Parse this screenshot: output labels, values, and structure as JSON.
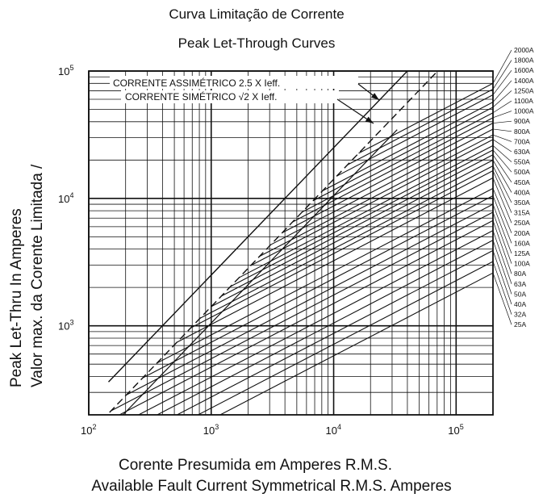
{
  "chart_data": {
    "type": "line",
    "title": "Curva Limitação de Corrente",
    "subtitle": "Peak Let-Through Curves",
    "xlabel_pt": "Corente Presumida em Amperes  R.M.S.",
    "xlabel_en": "Available Fault Current Symmetrical R.M.S. Amperes",
    "ylabel_en": "Peak Let-Thru In Amperes",
    "ylabel_pt": "Valor max. da Corente Limitada /",
    "x_scale": "log",
    "y_scale": "log",
    "xlim": [
      100,
      200000
    ],
    "ylim": [
      200,
      100000
    ],
    "x_ticks": [
      {
        "base": "10",
        "exp": "2",
        "value": 100
      },
      {
        "base": "10",
        "exp": "3",
        "value": 1000
      },
      {
        "base": "10",
        "exp": "4",
        "value": 10000
      },
      {
        "base": "10",
        "exp": "5",
        "value": 100000
      }
    ],
    "y_ticks": [
      {
        "base": "10",
        "exp": "3",
        "value": 1000
      },
      {
        "base": "10",
        "exp": "4",
        "value": 10000
      },
      {
        "base": "10",
        "exp": "5",
        "value": 100000
      }
    ],
    "grid": true,
    "reference_lines": [
      {
        "label": "CORRENTE ASSIMÉTRICO  2.5 X Ieff.",
        "factor": 2.5,
        "style": "solid"
      },
      {
        "label_pre": "CORRENTE SIMÉTRICO ",
        "label_root": "√2",
        "label_post": " X Ieff.",
        "factor": 1.414,
        "style": "dashed"
      }
    ],
    "ratings": [
      "2000A",
      "1800A",
      "1600A",
      "1400A",
      "1250A",
      "1100A",
      "1000A",
      "900A",
      "800A",
      "700A",
      "630A",
      "550A",
      "500A",
      "450A",
      "400A",
      "350A",
      "315A",
      "250A",
      "200A",
      "160A",
      "125A",
      "100A",
      "80A",
      "63A",
      "50A",
      "40A",
      "32A",
      "25A"
    ],
    "rating_end_peak": [
      80000,
      72000,
      65000,
      57000,
      52000,
      47000,
      43000,
      39000,
      35000,
      31500,
      29000,
      26000,
      24000,
      22000,
      20000,
      18000,
      16500,
      14500,
      12000,
      10500,
      9000,
      7800,
      6700,
      5600,
      4700,
      3900,
      3200,
      2600
    ]
  }
}
